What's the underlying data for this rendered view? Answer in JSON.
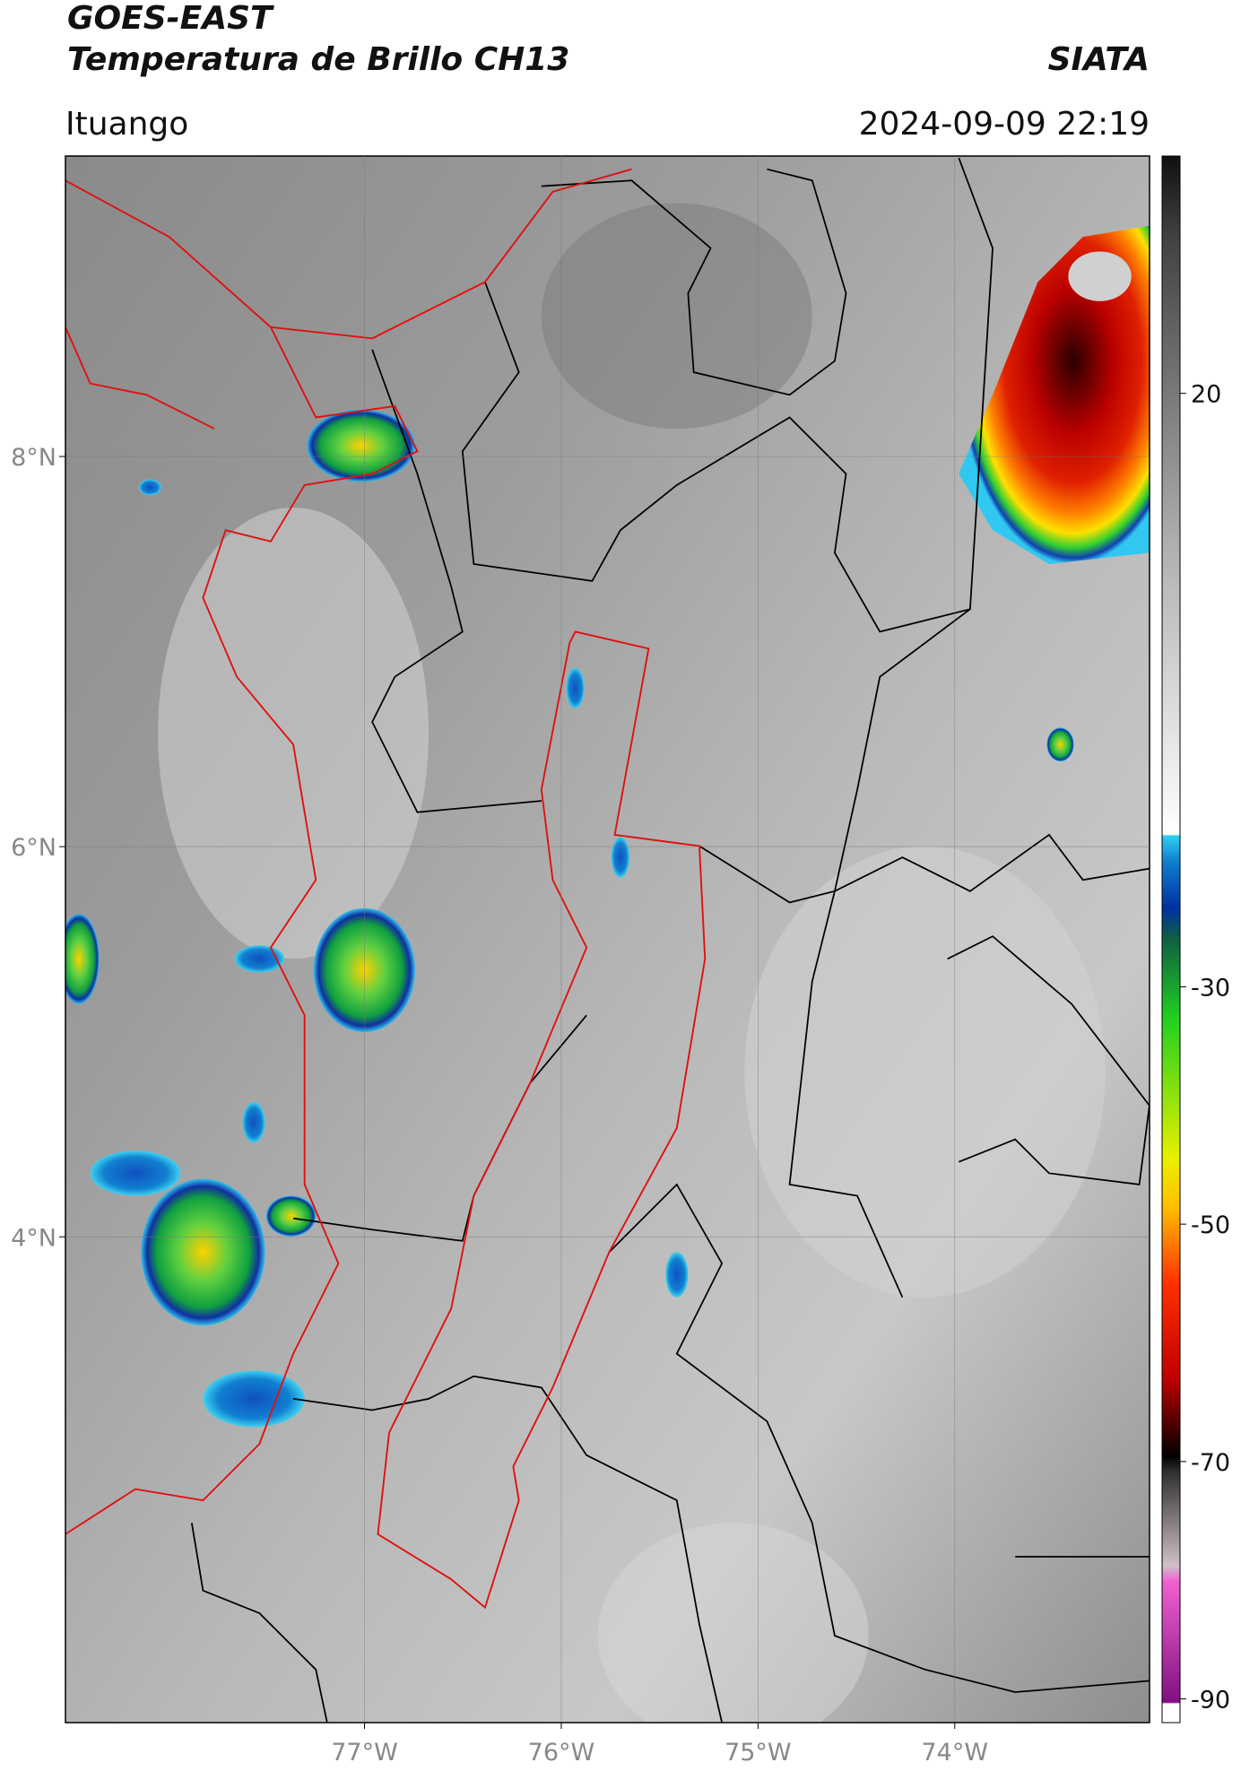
{
  "header": {
    "title": "GOES-EAST",
    "subtitle": "Temperatura de Brillo CH13",
    "location": "Ituango",
    "source": "SIATA",
    "datetime": "2024-09-09 22:19"
  },
  "map": {
    "lon_range": [
      -78.52,
      -73.01
    ],
    "lat_range": [
      1.51,
      9.54
    ],
    "lon_ticks": [
      {
        "value": -77,
        "label": "77°W"
      },
      {
        "value": -76,
        "label": "76°W"
      },
      {
        "value": -75,
        "label": "75°W"
      },
      {
        "value": -74,
        "label": "74°W"
      }
    ],
    "lat_ticks": [
      {
        "value": 8,
        "label": "8°N"
      },
      {
        "value": 6,
        "label": "6°N"
      },
      {
        "value": 4,
        "label": "4°N"
      }
    ]
  },
  "colorbar": {
    "range": [
      -92,
      40
    ],
    "ticks": [
      20,
      -30,
      -50,
      -70,
      -90
    ]
  }
}
